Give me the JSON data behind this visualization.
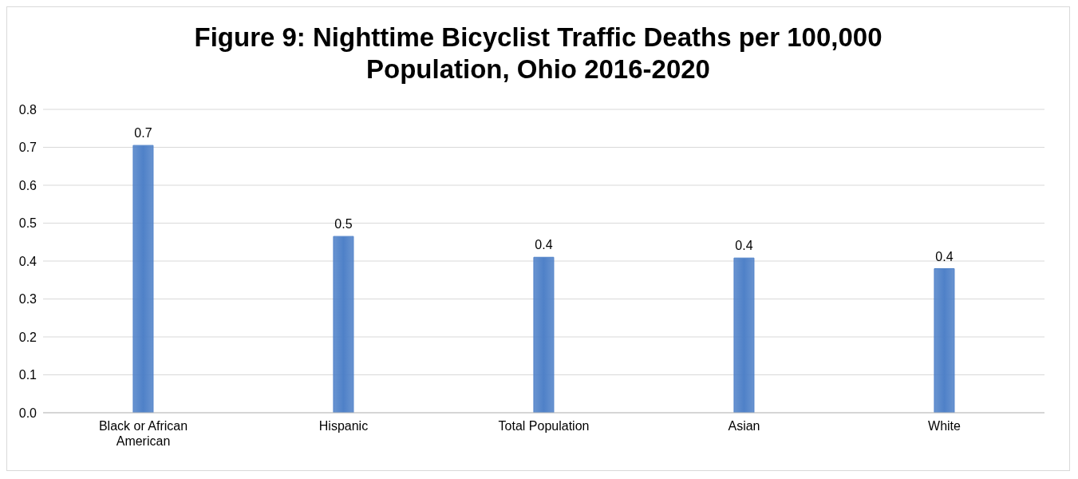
{
  "chart_data": {
    "type": "bar",
    "title": "Figure 9: Nighttime Bicyclist Traffic Deaths per 100,000 Population, Ohio 2016-2020",
    "categories": [
      "Black or African American",
      "Hispanic",
      "Total Population",
      "Asian",
      "White"
    ],
    "values": [
      0.705,
      0.465,
      0.41,
      0.408,
      0.38
    ],
    "value_labels": [
      "0.7",
      "0.5",
      "0.4",
      "0.4",
      "0.4"
    ],
    "color": "#4f81c8",
    "ylim": [
      0,
      0.8
    ],
    "yticks": [
      {
        "value": 0,
        "label": "0.0"
      },
      0.1,
      0.2,
      0.3,
      0.4,
      0.5,
      0.6,
      0.7,
      0.8
    ],
    "grid": "y"
  }
}
